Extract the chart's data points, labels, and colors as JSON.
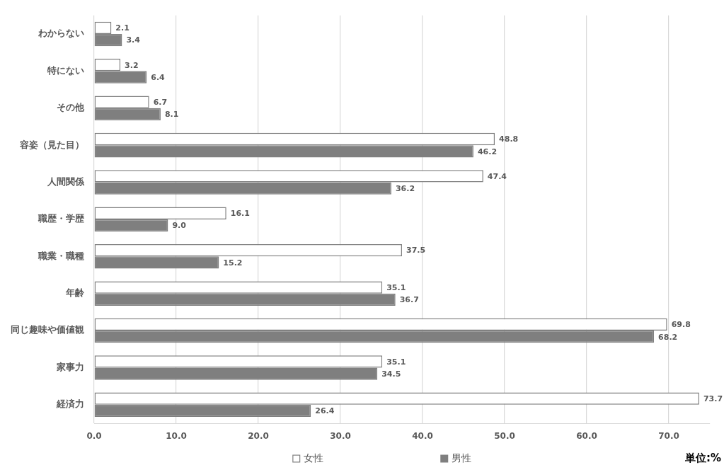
{
  "chart_data": {
    "type": "bar",
    "orientation": "horizontal",
    "categories": [
      "わからない",
      "特にない",
      "その他",
      "容姿（見た目）",
      "人間関係",
      "職歴・学歴",
      "職業・職種",
      "年齢",
      "同じ趣味や価値観",
      "家事力",
      "経済力"
    ],
    "series": [
      {
        "name": "女性",
        "color": "#ffffff",
        "values": [
          2.1,
          3.2,
          6.7,
          48.8,
          47.4,
          16.1,
          37.5,
          35.1,
          69.8,
          35.1,
          73.7
        ],
        "value_labels": [
          "2.1",
          "3.2",
          "6.7",
          "48.8",
          "47.4",
          "16.1",
          "37.5",
          "35.1",
          "69.8",
          "35.1",
          "73.7"
        ]
      },
      {
        "name": "男性",
        "color": "#7f7f7f",
        "values": [
          3.4,
          6.4,
          8.1,
          46.2,
          36.2,
          9.0,
          15.2,
          36.7,
          68.2,
          34.5,
          26.4
        ],
        "value_labels": [
          "3.4",
          "6.4",
          "8.1",
          "46.2",
          "36.2",
          "9.0",
          "15.2",
          "36.7",
          "68.2",
          "34.5",
          "26.4"
        ]
      }
    ],
    "xlim": [
      0,
      75
    ],
    "xticks": [
      {
        "value": 0,
        "label": "0.0"
      },
      {
        "value": 10,
        "label": "10.0"
      },
      {
        "value": 20,
        "label": "20.0"
      },
      {
        "value": 30,
        "label": "30.0"
      },
      {
        "value": 40,
        "label": "40.0"
      },
      {
        "value": 50,
        "label": "50.0"
      },
      {
        "value": 60,
        "label": "60.0"
      },
      {
        "value": 70,
        "label": "70.0"
      }
    ],
    "grid": "x",
    "legend": "bottom",
    "annotations": [
      "単位:%"
    ]
  }
}
